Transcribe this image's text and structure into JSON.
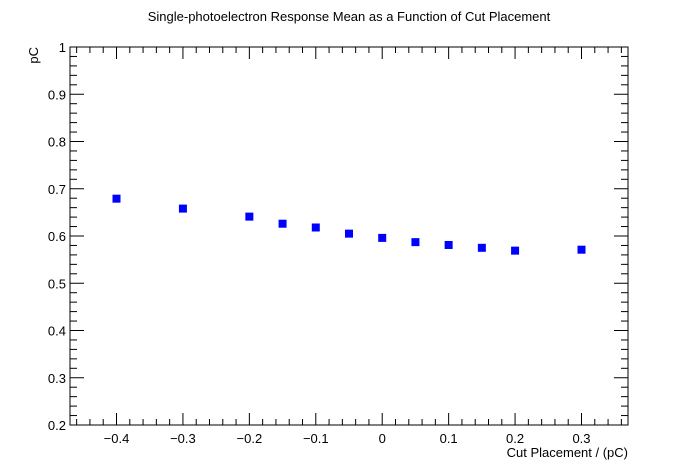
{
  "chart_data": {
    "type": "scatter",
    "title": "Single-photoelectron Response Mean as a Function of Cut Placement",
    "xlabel": "Cut Placement / (pC)",
    "ylabel": "pC",
    "xlim": [
      -0.47,
      0.37
    ],
    "ylim": [
      0.2,
      1.0
    ],
    "x_ticks": [
      -0.4,
      -0.3,
      -0.2,
      -0.1,
      0,
      0.1,
      0.2,
      0.3
    ],
    "x_tick_labels": [
      "−0.4",
      "−0.3",
      "−0.2",
      "−0.1",
      "0",
      "0.1",
      "0.2",
      "0.3"
    ],
    "y_ticks": [
      0.2,
      0.3,
      0.4,
      0.5,
      0.6,
      0.7,
      0.8,
      0.9,
      1.0
    ],
    "y_tick_labels": [
      "0.2",
      "0.3",
      "0.4",
      "0.5",
      "0.6",
      "0.7",
      "0.8",
      "0.9",
      "1"
    ],
    "grid": false,
    "marker": "square",
    "marker_color": "#0000ff",
    "x": [
      -0.4,
      -0.3,
      -0.2,
      -0.15,
      -0.1,
      -0.05,
      0,
      0.05,
      0.1,
      0.15,
      0.2,
      0.3
    ],
    "y": [
      0.679,
      0.658,
      0.641,
      0.626,
      0.618,
      0.605,
      0.596,
      0.587,
      0.581,
      0.575,
      0.569,
      0.571
    ]
  }
}
